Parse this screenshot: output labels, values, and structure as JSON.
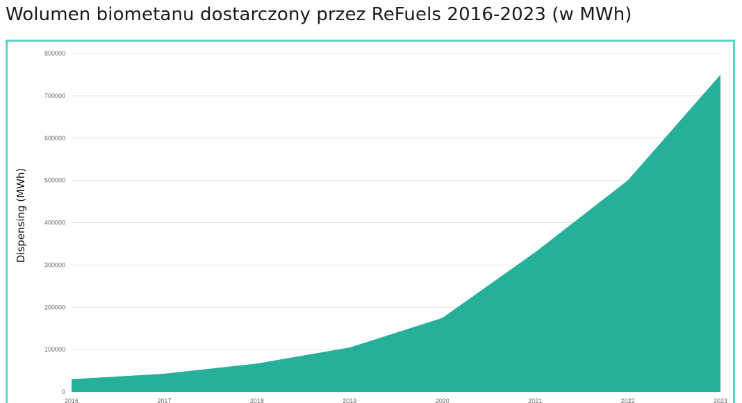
{
  "header": {
    "title": "Wolumen biometanu dostarczony przez ReFuels 2016-2023 (w MWh)"
  },
  "colors": {
    "accent_border": "#5ad4c8",
    "area_fill": "#26b09a"
  },
  "chart_data": {
    "type": "area",
    "title": "Wolumen biometanu dostarczony przez ReFuels 2016-2023 (w MWh)",
    "ylabel": "Dispensing (MWh)",
    "xlabel": "",
    "x": [
      "2016",
      "2017",
      "2018",
      "2019",
      "2020",
      "2021",
      "2022",
      "2023"
    ],
    "series": [
      {
        "values": [
          30000,
          43000,
          67000,
          105000,
          175000,
          330000,
          500000,
          750000
        ]
      }
    ],
    "ylim": [
      0,
      800000
    ],
    "yticks": [
      "0",
      "100000",
      "200000",
      "300000",
      "400000",
      "500000",
      "600000",
      "700000",
      "800000"
    ],
    "grid": true,
    "legend": "none"
  }
}
